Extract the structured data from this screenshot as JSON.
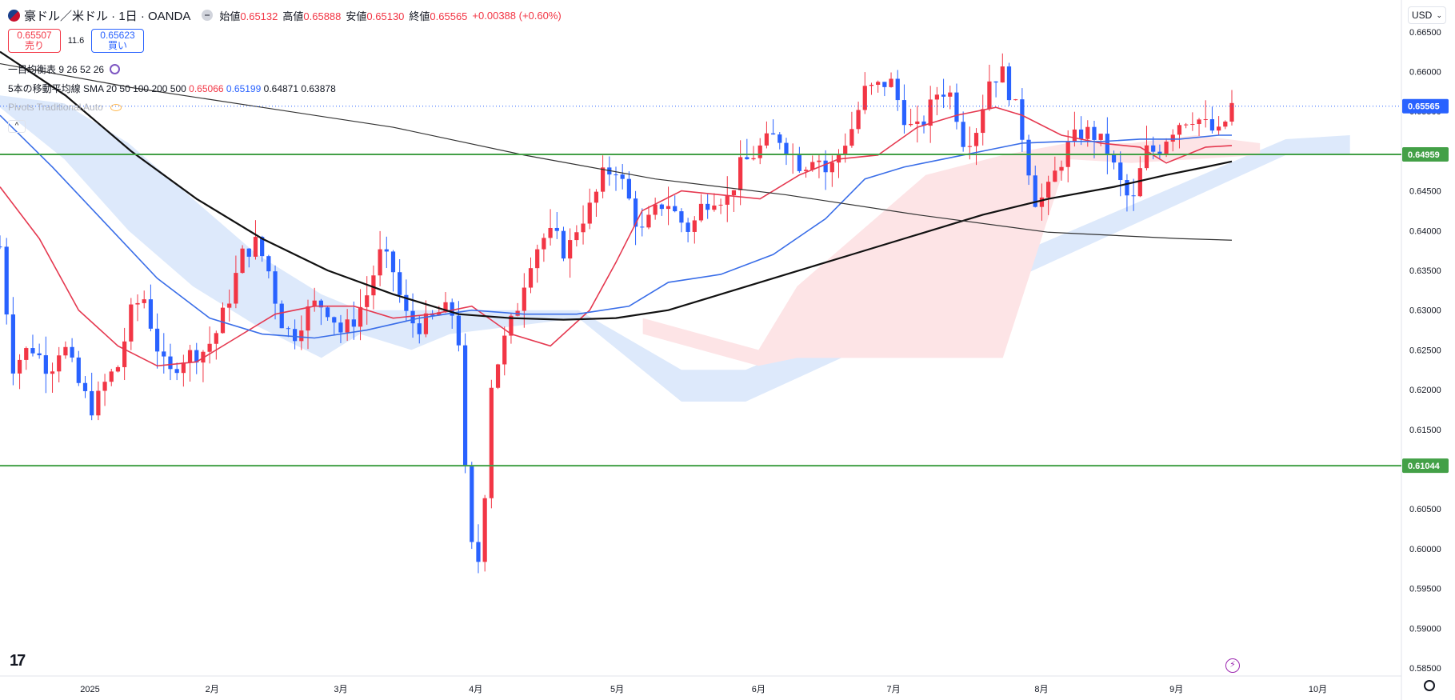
{
  "header": {
    "symbol": "豪ドル／米ドル · 1日 · OANDA",
    "open_label": "始値",
    "open": "0.65132",
    "high_label": "高値",
    "high": "0.65888",
    "low_label": "安値",
    "low": "0.65130",
    "close_label": "終値",
    "close": "0.65565",
    "change": "+0.00388 (+0.60%)"
  },
  "trade": {
    "sell_price": "0.65507",
    "sell_label": "売り",
    "spread": "11.6",
    "buy_price": "0.65623",
    "buy_label": "買い"
  },
  "indicators": {
    "ichimoku": {
      "label": "一目均衡表",
      "params": "9 26 52 26"
    },
    "sma": {
      "label": "5本の移動平均線",
      "type": "SMA",
      "params": "20 50 100 200 500",
      "values": [
        "0.65066",
        "0.65199",
        "0.64871",
        "0.63878"
      ]
    },
    "pivots": {
      "label": "Pivots Traditional Auto"
    }
  },
  "currency": "USD",
  "colors": {
    "up": "#f23645",
    "down": "#2962ff",
    "sma20": "#e53950",
    "sma50": "#3a6ee8",
    "sma100": "#111111",
    "sma200": "#333333",
    "pivot": "#43a047",
    "cloud_bull": "#fde4e6",
    "cloud_bear": "#dde9fb"
  },
  "chart_data": {
    "type": "candlestick",
    "y_ticks": [
      "0.66500",
      "0.66000",
      "0.65500",
      "0.65000",
      "0.64500",
      "0.64000",
      "0.63500",
      "0.63000",
      "0.62500",
      "0.62000",
      "0.61500",
      "0.61000",
      "0.60500",
      "0.60000",
      "0.59500",
      "0.59000",
      "0.58500"
    ],
    "ylim": [
      0.584,
      0.669
    ],
    "x_labels": [
      {
        "label": "2025",
        "index": 14
      },
      {
        "label": "2月",
        "index": 33
      },
      {
        "label": "3月",
        "index": 53
      },
      {
        "label": "4月",
        "index": 74
      },
      {
        "label": "5月",
        "index": 96
      },
      {
        "label": "6月",
        "index": 118
      },
      {
        "label": "7月",
        "index": 139
      },
      {
        "label": "8月",
        "index": 162
      },
      {
        "label": "9月",
        "index": 183
      },
      {
        "label": "10月",
        "index": 205
      }
    ],
    "x_range": [
      0,
      218
    ],
    "price_labels": [
      {
        "value": 0.65565,
        "text": "0.65565",
        "color": "#2962ff"
      },
      {
        "value": 0.64959,
        "text": "0.64959",
        "color": "#43a047"
      },
      {
        "value": 0.61044,
        "text": "0.61044",
        "color": "#43a047"
      }
    ],
    "pivot_levels": [
      0.64959,
      0.61044
    ],
    "current_price": 0.65565,
    "candles": [],
    "sma_lines": [
      {
        "name": "20",
        "color": "#e53950",
        "points": [
          [
            0,
            0.6455
          ],
          [
            6,
            0.639
          ],
          [
            12,
            0.63
          ],
          [
            18,
            0.6255
          ],
          [
            24,
            0.623
          ],
          [
            30,
            0.6235
          ],
          [
            36,
            0.6265
          ],
          [
            42,
            0.6295
          ],
          [
            48,
            0.6305
          ],
          [
            54,
            0.6305
          ],
          [
            60,
            0.629
          ],
          [
            66,
            0.6295
          ],
          [
            72,
            0.6305
          ],
          [
            78,
            0.627
          ],
          [
            84,
            0.6255
          ],
          [
            90,
            0.63
          ],
          [
            94,
            0.636
          ],
          [
            98,
            0.6425
          ],
          [
            104,
            0.645
          ],
          [
            110,
            0.6445
          ],
          [
            116,
            0.644
          ],
          [
            122,
            0.647
          ],
          [
            128,
            0.649
          ],
          [
            134,
            0.6495
          ],
          [
            140,
            0.653
          ],
          [
            146,
            0.6545
          ],
          [
            152,
            0.6555
          ],
          [
            156,
            0.6545
          ],
          [
            162,
            0.652
          ],
          [
            168,
            0.651
          ],
          [
            174,
            0.6505
          ],
          [
            178,
            0.6485
          ],
          [
            184,
            0.6505
          ],
          [
            188,
            0.6507
          ]
        ]
      },
      {
        "name": "50",
        "color": "#3a6ee8",
        "points": [
          [
            0,
            0.6545
          ],
          [
            8,
            0.648
          ],
          [
            16,
            0.641
          ],
          [
            24,
            0.634
          ],
          [
            32,
            0.629
          ],
          [
            40,
            0.627
          ],
          [
            48,
            0.6265
          ],
          [
            56,
            0.6275
          ],
          [
            64,
            0.629
          ],
          [
            72,
            0.63
          ],
          [
            80,
            0.6295
          ],
          [
            88,
            0.6295
          ],
          [
            96,
            0.6305
          ],
          [
            102,
            0.6335
          ],
          [
            110,
            0.6345
          ],
          [
            118,
            0.637
          ],
          [
            126,
            0.6415
          ],
          [
            132,
            0.6465
          ],
          [
            138,
            0.648
          ],
          [
            144,
            0.649
          ],
          [
            150,
            0.65
          ],
          [
            156,
            0.651
          ],
          [
            162,
            0.6512
          ],
          [
            168,
            0.6512
          ],
          [
            174,
            0.6515
          ],
          [
            180,
            0.6515
          ],
          [
            186,
            0.652
          ],
          [
            188,
            0.652
          ]
        ]
      },
      {
        "name": "100",
        "color": "#111111",
        "points": [
          [
            0,
            0.6625
          ],
          [
            10,
            0.657
          ],
          [
            20,
            0.65
          ],
          [
            30,
            0.644
          ],
          [
            40,
            0.639
          ],
          [
            50,
            0.635
          ],
          [
            60,
            0.632
          ],
          [
            70,
            0.6295
          ],
          [
            78,
            0.629
          ],
          [
            86,
            0.6288
          ],
          [
            94,
            0.629
          ],
          [
            102,
            0.63
          ],
          [
            110,
            0.632
          ],
          [
            120,
            0.6345
          ],
          [
            130,
            0.637
          ],
          [
            140,
            0.6395
          ],
          [
            150,
            0.642
          ],
          [
            160,
            0.644
          ],
          [
            170,
            0.6455
          ],
          [
            178,
            0.647
          ],
          [
            184,
            0.648
          ],
          [
            188,
            0.6487
          ]
        ]
      },
      {
        "name": "200",
        "color": "#333333",
        "points": [
          [
            0,
            0.661
          ],
          [
            20,
            0.658
          ],
          [
            40,
            0.6555
          ],
          [
            60,
            0.653
          ],
          [
            80,
            0.6495
          ],
          [
            100,
            0.6465
          ],
          [
            120,
            0.6445
          ],
          [
            140,
            0.642
          ],
          [
            160,
            0.6398
          ],
          [
            180,
            0.639
          ],
          [
            188,
            0.6388
          ]
        ]
      }
    ],
    "cloud_bull": [
      [
        100,
        0.627,
        0.629
      ],
      [
        118,
        0.623,
        0.625
      ],
      [
        124,
        0.624,
        0.633
      ],
      [
        134,
        0.624,
        0.64
      ],
      [
        144,
        0.624,
        0.647
      ],
      [
        156,
        0.624,
        0.6495
      ],
      [
        166,
        0.649,
        0.651
      ],
      [
        176,
        0.6485,
        0.651
      ],
      [
        186,
        0.649,
        0.652
      ],
      [
        196,
        0.6495,
        0.651
      ]
    ],
    "cloud_bear": [
      [
        0,
        0.6555,
        0.657
      ],
      [
        10,
        0.649,
        0.656
      ],
      [
        20,
        0.64,
        0.651
      ],
      [
        30,
        0.633,
        0.644
      ],
      [
        40,
        0.628,
        0.637
      ],
      [
        50,
        0.624,
        0.632
      ],
      [
        56,
        0.627,
        0.63
      ],
      [
        64,
        0.625,
        0.63
      ],
      [
        70,
        0.627,
        0.63
      ],
      [
        90,
        0.629,
        0.63
      ],
      [
        106,
        0.6185,
        0.6225
      ],
      [
        116,
        0.6185,
        0.6225
      ],
      [
        200,
        0.6495,
        0.6515
      ],
      [
        210,
        0.6495,
        0.652
      ]
    ]
  }
}
